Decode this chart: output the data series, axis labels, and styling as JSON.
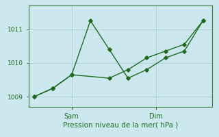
{
  "xlabel": "Pression niveau de la mer( hPa )",
  "bg_color": "#cce8ee",
  "grid_color": "#b0d0d8",
  "line_color": "#1e6b1e",
  "spine_color": "#3a7a3a",
  "ylim": [
    1008.7,
    1011.7
  ],
  "yticks": [
    1009,
    1010,
    1011
  ],
  "ytick_fontsize": 6.5,
  "xtick_fontsize": 7,
  "xlabel_fontsize": 7.5,
  "line1_x": [
    0,
    1,
    2,
    3,
    4,
    5,
    6,
    7,
    8,
    9
  ],
  "line1_y": [
    1009.0,
    1009.25,
    1009.65,
    1011.25,
    1010.4,
    1009.55,
    1009.8,
    1010.15,
    1010.35,
    1011.25
  ],
  "line2_x": [
    0,
    1,
    2,
    4,
    5,
    6,
    7,
    8,
    9
  ],
  "line2_y": [
    1009.0,
    1009.25,
    1009.65,
    1009.55,
    1009.8,
    1010.15,
    1010.35,
    1010.55,
    1011.25
  ],
  "x_sam_tick": 2.0,
  "x_dim_tick": 6.5,
  "xlim": [
    -0.3,
    9.5
  ],
  "marker": "D",
  "markersize": 2.8,
  "linewidth": 1.0
}
